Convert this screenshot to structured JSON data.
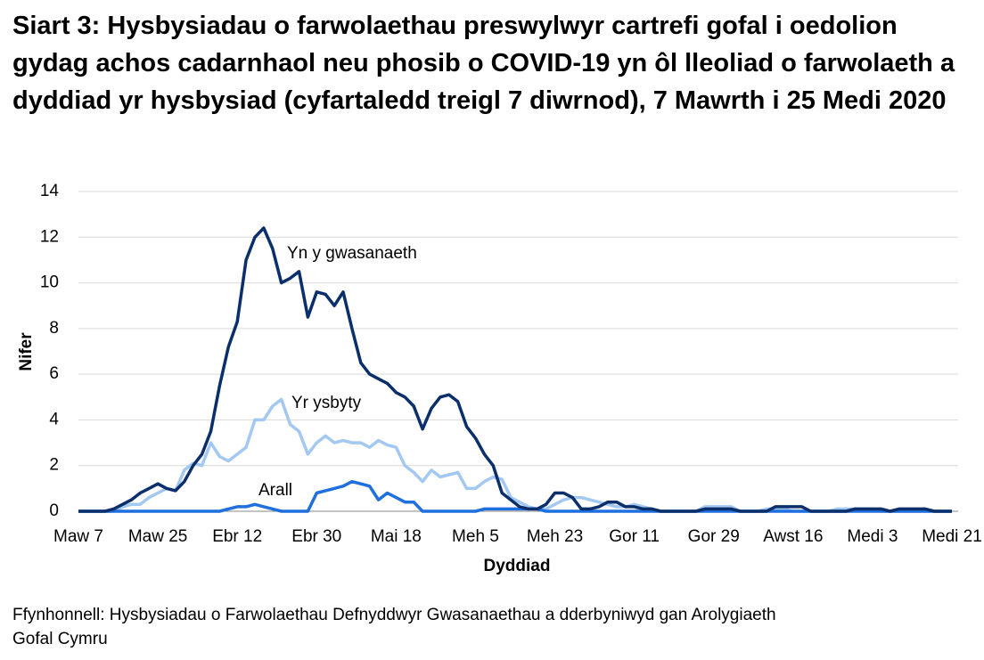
{
  "chart_data": {
    "type": "line",
    "title": "Siart 3: Hysbysiadau o farwolaethau preswylwyr cartrefi gofal i oedolion gydag achos cadarnhaol neu phosib o COVID-19 yn ôl lleoliad o farwolaeth a dyddiad yr hysbysiad (cyfartaledd treigl 7 diwrnod), 7 Mawrth i 25 Medi 2020",
    "x_label": "Dyddiad",
    "y_label": "Nifer",
    "source": "Ffynhonnell: Hysbysiadau o Farwolaethau Defnyddwyr Gwasanaethau a dderbyniwyd gan Arolygiaeth Gofal Cymru",
    "categories": [
      "Maw 7",
      null,
      null,
      null,
      null,
      null,
      null,
      null,
      null,
      "Maw 25",
      null,
      null,
      null,
      null,
      null,
      null,
      null,
      null,
      "Ebr 12",
      null,
      null,
      null,
      null,
      null,
      null,
      null,
      null,
      "Ebr 30",
      null,
      null,
      null,
      null,
      null,
      null,
      null,
      null,
      "Mai 18",
      null,
      null,
      null,
      null,
      null,
      null,
      null,
      null,
      "Meh 5",
      null,
      null,
      null,
      null,
      null,
      null,
      null,
      null,
      "Meh 23",
      null,
      null,
      null,
      null,
      null,
      null,
      null,
      null,
      "Gor 11",
      null,
      null,
      null,
      null,
      null,
      null,
      null,
      null,
      "Gor 29",
      null,
      null,
      null,
      null,
      null,
      null,
      null,
      null,
      "Awst 16",
      null,
      null,
      null,
      null,
      null,
      null,
      null,
      null,
      "Medi 3",
      null,
      null,
      null,
      null,
      null,
      null,
      null,
      null,
      "Medi 21"
    ],
    "series": [
      {
        "name": "Yn y gwasanaeth",
        "color": "#0b2f6b",
        "values": [
          0,
          0,
          0,
          0,
          0.1,
          0.3,
          0.5,
          0.8,
          1.0,
          1.2,
          1.0,
          0.9,
          1.3,
          2.0,
          2.5,
          3.5,
          5.5,
          7.2,
          8.3,
          11.0,
          12.0,
          12.4,
          11.5,
          10.0,
          10.2,
          10.5,
          8.5,
          9.6,
          9.5,
          9.0,
          9.6,
          8.0,
          6.5,
          6.0,
          5.8,
          5.6,
          5.2,
          5.0,
          4.6,
          3.6,
          4.5,
          5.0,
          5.1,
          4.8,
          3.7,
          3.2,
          2.5,
          2.0,
          0.8,
          0.5,
          0.2,
          0.1,
          0.1,
          0.3,
          0.8,
          0.8,
          0.6,
          0.1,
          0.1,
          0.2,
          0.4,
          0.4,
          0.2,
          0.2,
          0.1,
          0.1,
          0,
          0,
          0,
          0,
          0,
          0.1,
          0.1,
          0.1,
          0.1,
          0,
          0,
          0,
          0,
          0.2,
          0.2,
          0.2,
          0.2,
          0,
          0,
          0,
          0,
          0,
          0.1,
          0.1,
          0.1,
          0.1,
          0,
          0.1,
          0.1,
          0.1,
          0.1,
          0,
          0,
          0
        ]
      },
      {
        "name": "Yr ysbyty",
        "color": "#a3c8f2",
        "values": [
          0,
          0,
          0,
          0,
          0,
          0.2,
          0.3,
          0.3,
          0.6,
          0.8,
          1.0,
          0.9,
          1.8,
          2.1,
          2.0,
          3.0,
          2.4,
          2.2,
          2.5,
          2.8,
          4.0,
          4.0,
          4.6,
          4.9,
          3.8,
          3.5,
          2.5,
          3.0,
          3.3,
          3.0,
          3.1,
          3.0,
          3.0,
          2.8,
          3.1,
          2.9,
          2.8,
          2.0,
          1.7,
          1.3,
          1.8,
          1.5,
          1.6,
          1.7,
          1.0,
          1.0,
          1.3,
          1.5,
          1.4,
          0.6,
          0.4,
          0.2,
          0.1,
          0.1,
          0.3,
          0.5,
          0.6,
          0.6,
          0.5,
          0.4,
          0.3,
          0.2,
          0.2,
          0.3,
          0.2,
          0.1,
          0,
          0,
          0,
          0,
          0,
          0.2,
          0.2,
          0.2,
          0.2,
          0,
          0,
          0,
          0.1,
          0.1,
          0.1,
          0,
          0,
          0,
          0,
          0,
          0.1,
          0.1,
          0.1,
          0.1,
          0.1,
          0,
          0,
          0,
          0,
          0,
          0,
          0,
          0,
          0
        ]
      },
      {
        "name": "Arall",
        "color": "#1f6fde",
        "values": [
          0,
          0,
          0,
          0,
          0,
          0,
          0,
          0,
          0,
          0,
          0,
          0,
          0,
          0,
          0,
          0,
          0,
          0.1,
          0.2,
          0.2,
          0.3,
          0.2,
          0.1,
          0,
          0,
          0,
          0,
          0.8,
          0.9,
          1.0,
          1.1,
          1.3,
          1.2,
          1.1,
          0.5,
          0.8,
          0.6,
          0.4,
          0.4,
          0,
          0,
          0,
          0,
          0,
          0,
          0,
          0.1,
          0.1,
          0.1,
          0.1,
          0.1,
          0.1,
          0.1,
          0,
          0,
          0,
          0,
          0,
          0,
          0,
          0,
          0,
          0,
          0,
          0,
          0,
          0,
          0,
          0,
          0,
          0,
          0,
          0,
          0,
          0,
          0,
          0,
          0,
          0,
          0,
          0,
          0,
          0,
          0,
          0,
          0,
          0,
          0,
          0,
          0,
          0,
          0,
          0,
          0,
          0,
          0,
          0,
          0,
          0,
          0
        ]
      }
    ],
    "ylim": [
      0,
      14
    ],
    "yticks": [
      0,
      2,
      4,
      6,
      8,
      10,
      12,
      14
    ],
    "grid": true
  }
}
